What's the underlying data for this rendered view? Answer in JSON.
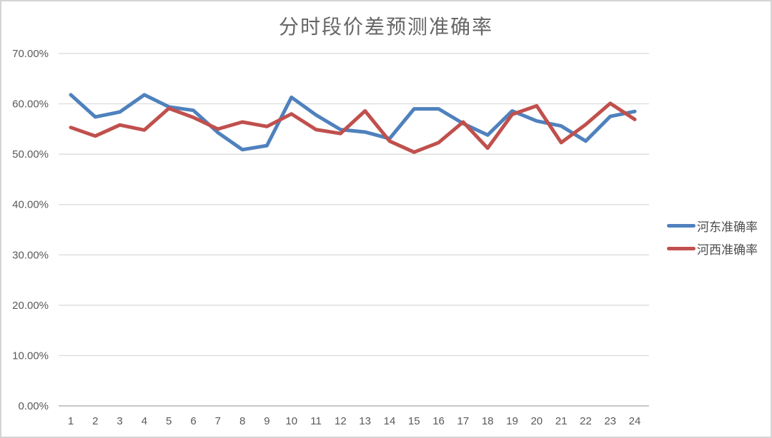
{
  "chart_data": {
    "type": "line",
    "title": "分时段价差预测准确率",
    "categories": [
      "1",
      "2",
      "3",
      "4",
      "5",
      "6",
      "7",
      "8",
      "9",
      "10",
      "11",
      "12",
      "13",
      "14",
      "15",
      "16",
      "17",
      "18",
      "19",
      "20",
      "21",
      "22",
      "23",
      "24"
    ],
    "series": [
      {
        "name": "河东准确率",
        "color": "#4F81BD",
        "values": [
          61.8,
          57.4,
          58.4,
          61.8,
          59.4,
          58.7,
          54.3,
          50.9,
          51.7,
          61.3,
          57.8,
          54.9,
          54.4,
          53.1,
          59.0,
          59.0,
          56.1,
          53.8,
          58.6,
          56.6,
          55.6,
          52.6,
          57.5,
          58.5
        ]
      },
      {
        "name": "河西准确率",
        "color": "#C0504D",
        "values": [
          55.3,
          53.6,
          55.8,
          54.8,
          59.1,
          57.3,
          55.0,
          56.4,
          55.5,
          58.0,
          54.9,
          54.1,
          58.6,
          52.6,
          50.4,
          52.3,
          56.4,
          51.2,
          57.9,
          59.6,
          52.3,
          55.9,
          60.1,
          56.9
        ]
      }
    ],
    "y_axis": {
      "min": 0,
      "max": 70,
      "step": 10,
      "unit": "%",
      "tick_labels_top_to_bottom": [
        "70.00%",
        "60.00%",
        "50.00%",
        "40.00%",
        "30.00%",
        "20.00%",
        "10.00%",
        "0.00%"
      ]
    },
    "x_axis": {
      "tick_labels": [
        "1",
        "2",
        "3",
        "4",
        "5",
        "6",
        "7",
        "8",
        "9",
        "10",
        "11",
        "12",
        "13",
        "14",
        "15",
        "16",
        "17",
        "18",
        "19",
        "20",
        "21",
        "22",
        "23",
        "24"
      ]
    },
    "legend_position": "right",
    "grid": true,
    "colors": {
      "gridline": "#D9D9D9",
      "axis_line": "#A6A6A6",
      "tick_text": "#595959",
      "title_text": "#666666",
      "background": "#FFFFFF"
    }
  }
}
